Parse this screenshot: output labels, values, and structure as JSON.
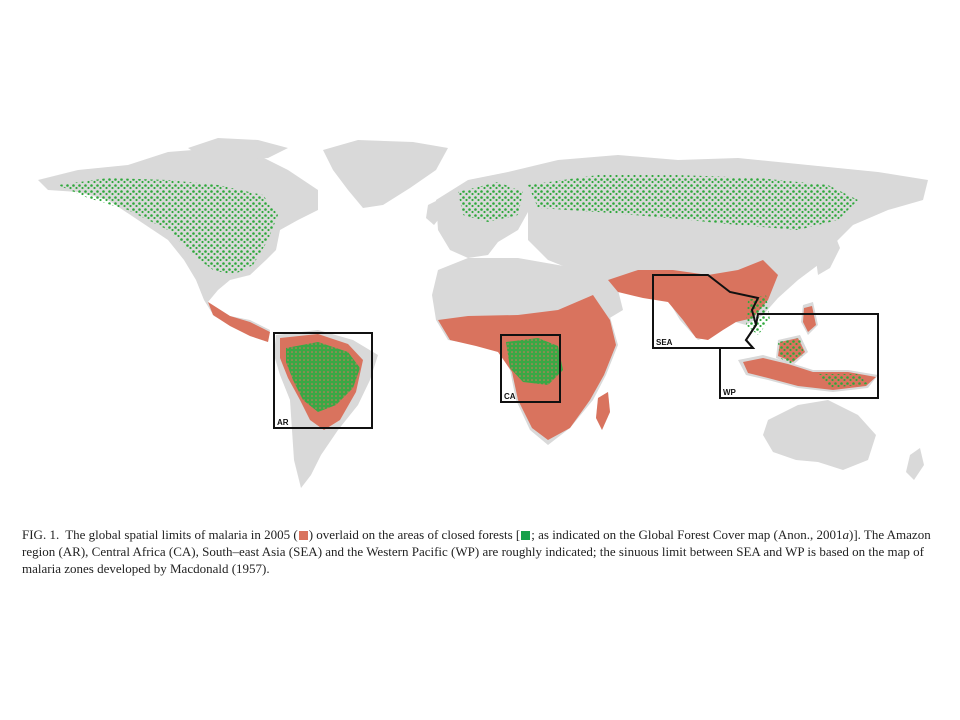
{
  "colors": {
    "ocean": "#ffffff",
    "land": "#d9d9d9",
    "malaria": "#d9735e",
    "forest": "#2fa83c",
    "box_outline": "#111111"
  },
  "map": {
    "regions": [
      {
        "code": "AR",
        "label": "AR",
        "name": "Amazon region"
      },
      {
        "code": "CA",
        "label": "CA",
        "name": "Central Africa"
      },
      {
        "code": "SEA",
        "label": "SEA",
        "name": "South-east Asia"
      },
      {
        "code": "WP",
        "label": "WP",
        "name": "Western Pacific"
      }
    ]
  },
  "caption": {
    "fig_label": "FIG. 1.",
    "part1": "The global spatial limits of malaria in 2005 (",
    "part2": ") overlaid on the areas of closed forests [",
    "part3": "; as indicated on the Global Forest Cover map (Anon., 2001",
    "part3_italic": "a",
    "part4": ")]. The Amazon region (AR), Central Africa (CA), South–east Asia (SEA) and the Western Pacific (WP) are roughly indicated; the sinuous limit between SEA and WP is based on the map of malaria zones developed by Macdonald (1957)."
  }
}
